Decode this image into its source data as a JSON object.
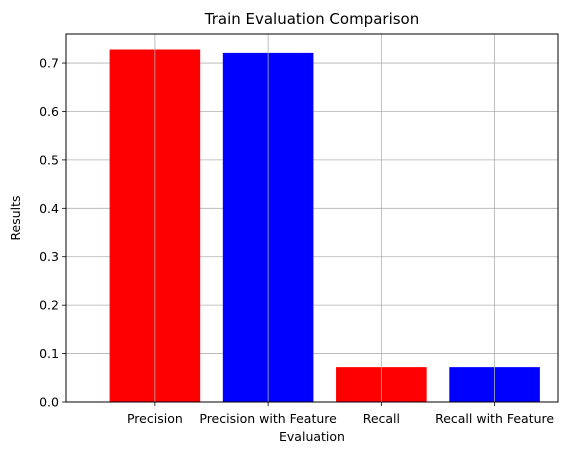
{
  "chart_data": {
    "type": "bar",
    "title": "Train Evaluation Comparison",
    "xlabel": "Evaluation",
    "ylabel": "Results",
    "categories": [
      "Precision",
      "Precision with Feature",
      "Recall",
      "Recall with Feature"
    ],
    "values": [
      0.728,
      0.721,
      0.072,
      0.072
    ],
    "bar_colors": [
      "#ff0000",
      "#0000ff",
      "#ff0000",
      "#0000ff"
    ],
    "ylim": [
      0,
      0.76
    ],
    "yticks": [
      0.0,
      0.1,
      0.2,
      0.3,
      0.4,
      0.5,
      0.6,
      0.7
    ],
    "ytick_labels": [
      "0.0",
      "0.1",
      "0.2",
      "0.3",
      "0.4",
      "0.5",
      "0.6",
      "0.7"
    ],
    "grid": true,
    "grid_color": "#b0b0b0"
  }
}
